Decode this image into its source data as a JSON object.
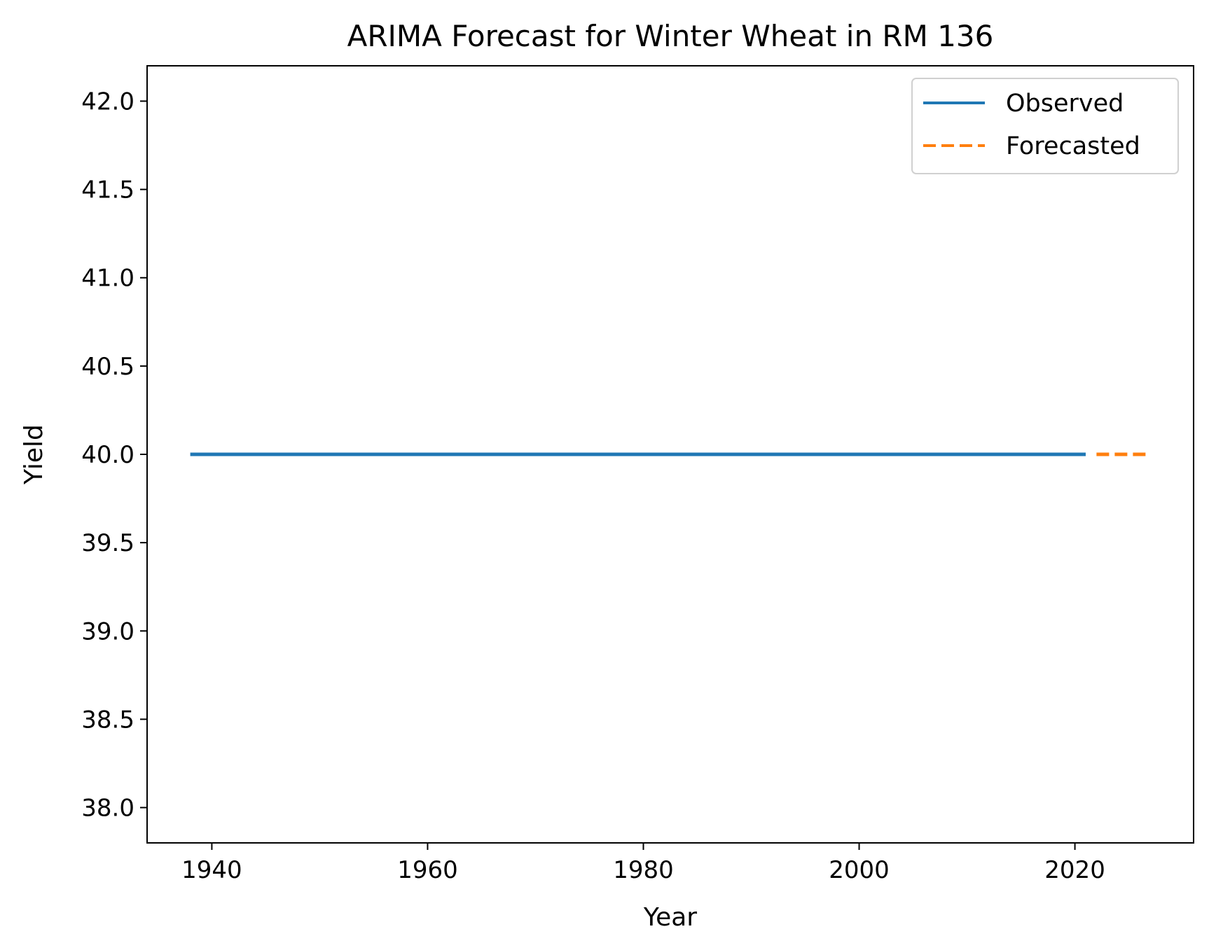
{
  "chart_data": {
    "type": "line",
    "title": "ARIMA Forecast for Winter Wheat in RM 136",
    "xlabel": "Year",
    "ylabel": "Yield",
    "xlim": [
      1934,
      2031
    ],
    "ylim": [
      37.8,
      42.2
    ],
    "x_ticks": [
      1940,
      1960,
      1980,
      2000,
      2020
    ],
    "x_tick_labels": [
      "1940",
      "1960",
      "1980",
      "2000",
      "2020"
    ],
    "y_ticks": [
      38.0,
      38.5,
      39.0,
      39.5,
      40.0,
      40.5,
      41.0,
      41.5,
      42.0
    ],
    "y_tick_labels": [
      "38.0",
      "38.5",
      "39.0",
      "39.5",
      "40.0",
      "40.5",
      "41.0",
      "41.5",
      "42.0"
    ],
    "grid": false,
    "legend_position": "top-right",
    "series": [
      {
        "name": "Observed",
        "style": "solid",
        "color": "#1f77b4",
        "x": [
          1938,
          2021
        ],
        "y": [
          40.0,
          40.0
        ]
      },
      {
        "name": "Forecasted",
        "style": "dashed",
        "color": "#ff7f0e",
        "x": [
          2022,
          2027
        ],
        "y": [
          40.0,
          40.0
        ]
      }
    ]
  }
}
